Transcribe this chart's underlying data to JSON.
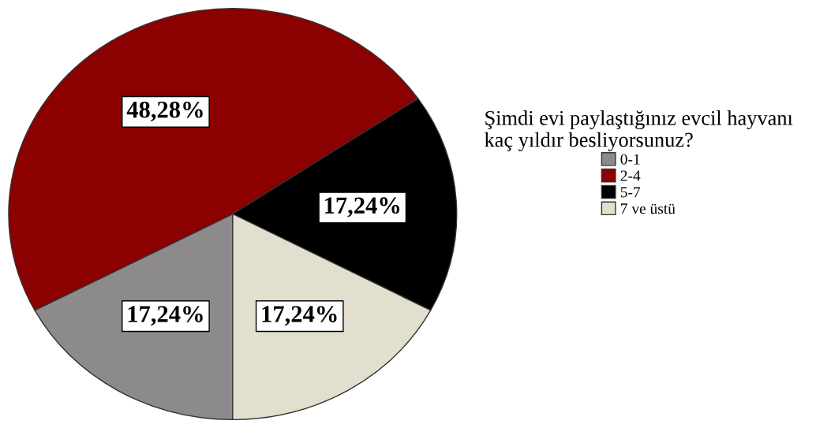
{
  "chart_data": {
    "type": "pie",
    "legend_title": "Şimdi evi paylaştığınız evcil hayvanı\nkaç yıldır besliyorsunuz?",
    "categories": [
      "0-1",
      "2-4",
      "5-7",
      "7 ve üstü"
    ],
    "values": [
      17.24,
      48.28,
      17.24,
      17.24
    ],
    "value_labels": [
      "17,24%",
      "48,28%",
      "17,24%",
      "17,24%"
    ],
    "colors": [
      "#8c8a8a",
      "#8b0000",
      "#000000",
      "#e3dfcf"
    ],
    "legend": "right"
  }
}
